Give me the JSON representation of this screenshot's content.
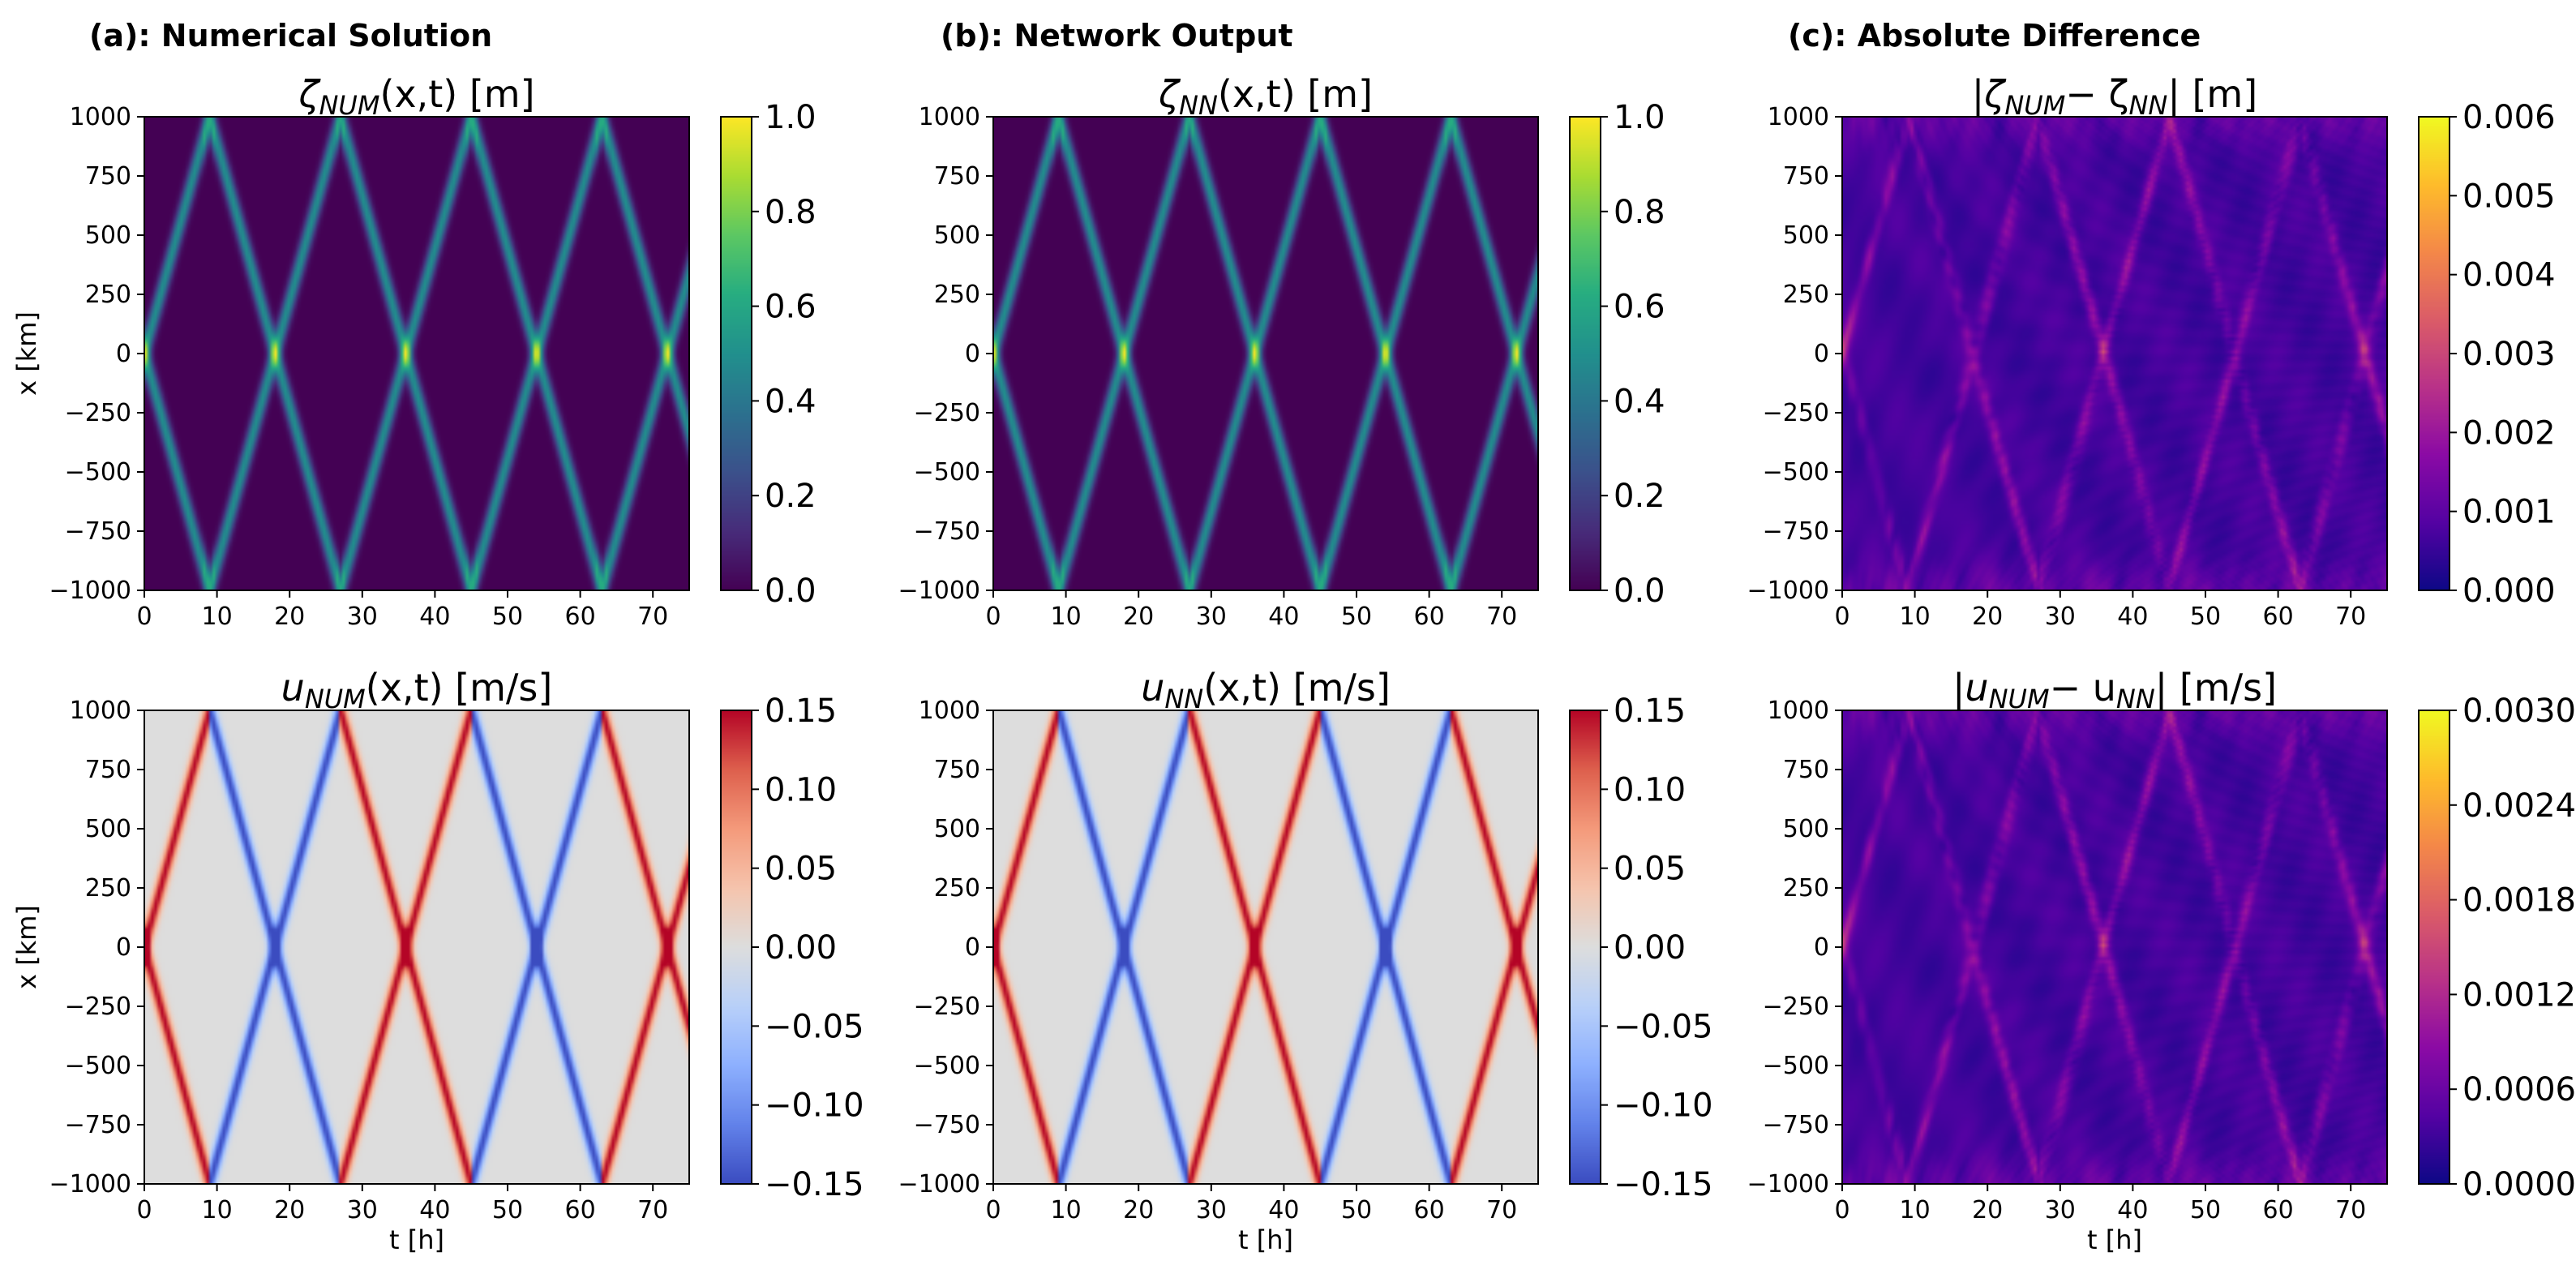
{
  "column_headers": [
    "(a): Numerical Solution",
    "(b): Network Output",
    "(c): Absolute Difference"
  ],
  "chart_data": [
    {
      "id": "p-a-zeta",
      "type": "heatmap",
      "field": "wave",
      "var": "zeta",
      "title_main": "ζ",
      "title_sub": "NUM",
      "title_rest": "(x,t) [m]",
      "xlabel": "",
      "ylabel": "x [km]",
      "xlim": [
        0,
        75
      ],
      "ylim": [
        -1000,
        1000
      ],
      "xticks": [
        0,
        10,
        20,
        30,
        40,
        50,
        60,
        70
      ],
      "yticks": [
        1000,
        750,
        500,
        250,
        0,
        -250,
        -500,
        -750,
        -1000
      ],
      "colormap": "viridis",
      "clim": [
        0,
        1
      ],
      "cbar_ticks": [
        "1.0",
        "0.8",
        "0.6",
        "0.4",
        "0.2",
        "0.0"
      ],
      "cbar_vals": [
        1,
        0.8,
        0.6,
        0.4,
        0.2,
        0
      ]
    },
    {
      "id": "p-b-zeta",
      "type": "heatmap",
      "field": "wave",
      "var": "zeta",
      "title_main": "ζ",
      "title_sub": "NN",
      "title_rest": "(x,t) [m]",
      "xlabel": "",
      "ylabel": "",
      "xlim": [
        0,
        75
      ],
      "ylim": [
        -1000,
        1000
      ],
      "xticks": [
        0,
        10,
        20,
        30,
        40,
        50,
        60,
        70
      ],
      "yticks": [
        1000,
        750,
        500,
        250,
        0,
        -250,
        -500,
        -750,
        -1000
      ],
      "colormap": "viridis",
      "clim": [
        0,
        1
      ],
      "cbar_ticks": [
        "1.0",
        "0.8",
        "0.6",
        "0.4",
        "0.2",
        "0.0"
      ],
      "cbar_vals": [
        1,
        0.8,
        0.6,
        0.4,
        0.2,
        0
      ]
    },
    {
      "id": "p-c-zeta",
      "type": "heatmap",
      "field": "error",
      "var": "zeta",
      "title_main": "|ζ",
      "title_sub": "NUM",
      "title_rest": "− ζ",
      "title_sub2": "NN",
      "title_end": "| [m]",
      "xlabel": "",
      "ylabel": "",
      "xlim": [
        0,
        75
      ],
      "ylim": [
        -1000,
        1000
      ],
      "xticks": [
        0,
        10,
        20,
        30,
        40,
        50,
        60,
        70
      ],
      "yticks": [
        1000,
        750,
        500,
        250,
        0,
        -250,
        -500,
        -750,
        -1000
      ],
      "colormap": "plasma",
      "clim": [
        0,
        0.006
      ],
      "cbar_ticks": [
        "0.006",
        "0.005",
        "0.004",
        "0.003",
        "0.002",
        "0.001",
        "0.000"
      ],
      "cbar_vals": [
        0.006,
        0.005,
        0.004,
        0.003,
        0.002,
        0.001,
        0
      ]
    },
    {
      "id": "p-a-u",
      "type": "heatmap",
      "field": "wave",
      "var": "u",
      "title_main": "u",
      "title_sub": "NUM",
      "title_rest": "(x,t) [m/s]",
      "xlabel": "t [h]",
      "ylabel": "x [km]",
      "xlim": [
        0,
        75
      ],
      "ylim": [
        -1000,
        1000
      ],
      "xticks": [
        0,
        10,
        20,
        30,
        40,
        50,
        60,
        70
      ],
      "yticks": [
        1000,
        750,
        500,
        250,
        0,
        -250,
        -500,
        -750,
        -1000
      ],
      "colormap": "coolwarm",
      "clim": [
        -0.15,
        0.15
      ],
      "cbar_ticks": [
        "0.15",
        "0.10",
        "0.05",
        "0.00",
        "−0.05",
        "−0.10",
        "−0.15"
      ],
      "cbar_vals": [
        0.15,
        0.1,
        0.05,
        0,
        -0.05,
        -0.1,
        -0.15
      ]
    },
    {
      "id": "p-b-u",
      "type": "heatmap",
      "field": "wave",
      "var": "u",
      "title_main": "u",
      "title_sub": "NN",
      "title_rest": "(x,t) [m/s]",
      "xlabel": "t [h]",
      "ylabel": "",
      "xlim": [
        0,
        75
      ],
      "ylim": [
        -1000,
        1000
      ],
      "xticks": [
        0,
        10,
        20,
        30,
        40,
        50,
        60,
        70
      ],
      "yticks": [
        1000,
        750,
        500,
        250,
        0,
        -250,
        -500,
        -750,
        -1000
      ],
      "colormap": "coolwarm",
      "clim": [
        -0.15,
        0.15
      ],
      "cbar_ticks": [
        "0.15",
        "0.10",
        "0.05",
        "0.00",
        "−0.05",
        "−0.10",
        "−0.15"
      ],
      "cbar_vals": [
        0.15,
        0.1,
        0.05,
        0,
        -0.05,
        -0.1,
        -0.15
      ]
    },
    {
      "id": "p-c-u",
      "type": "heatmap",
      "field": "error",
      "var": "u",
      "title_main": "|u",
      "title_sub": "NUM",
      "title_rest": "− u",
      "title_sub2": "NN",
      "title_end": "| [m/s]",
      "xlabel": "t [h]",
      "ylabel": "",
      "xlim": [
        0,
        75
      ],
      "ylim": [
        -1000,
        1000
      ],
      "xticks": [
        0,
        10,
        20,
        30,
        40,
        50,
        60,
        70
      ],
      "yticks": [
        1000,
        750,
        500,
        250,
        0,
        -250,
        -500,
        -750,
        -1000
      ],
      "colormap": "plasma",
      "clim": [
        0,
        0.003
      ],
      "cbar_ticks": [
        "0.0030",
        "0.0024",
        "0.0018",
        "0.0012",
        "0.0006",
        "0.0000"
      ],
      "cbar_vals": [
        0.003,
        0.0024,
        0.0018,
        0.0012,
        0.0006,
        0
      ]
    }
  ]
}
